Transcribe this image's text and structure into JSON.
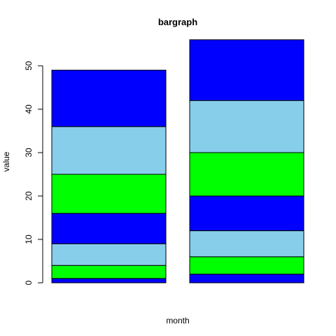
{
  "chart_data": {
    "type": "bar",
    "stacked": true,
    "title": "bargraph",
    "xlabel": "month",
    "ylabel": "value",
    "ylim": [
      0,
      56
    ],
    "yticks": [
      0,
      10,
      20,
      30,
      40,
      50
    ],
    "categories": [
      "",
      ""
    ],
    "segment_colors": [
      "#0000FF",
      "#00FF00",
      "#87CEEB",
      "#0000FF",
      "#00FF00",
      "#87CEEB",
      "#0000FF"
    ],
    "bars": [
      {
        "segments": [
          1,
          3,
          5,
          7,
          9,
          11,
          13
        ]
      },
      {
        "segments": [
          2,
          4,
          6,
          8,
          10,
          12,
          14
        ]
      }
    ],
    "grid": false,
    "legend": "none"
  }
}
